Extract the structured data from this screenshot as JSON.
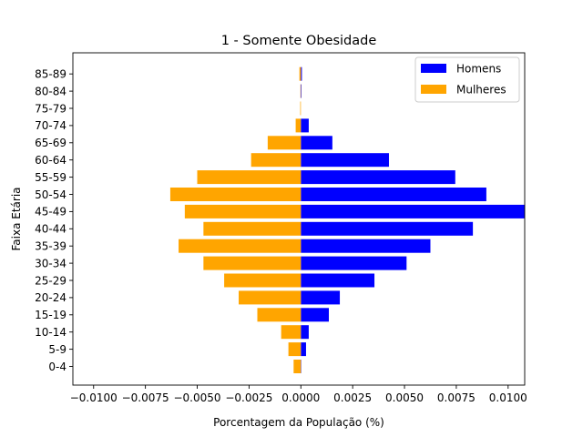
{
  "chart_data": {
    "type": "bar",
    "orientation": "horizontal",
    "title": "1 - Somente Obesidade",
    "xlabel": "Porcentagem da População (%)",
    "ylabel": "Faixa Etária",
    "xlim": [
      -0.011,
      0.0108
    ],
    "xticks": [
      -0.01,
      -0.0075,
      -0.005,
      -0.0025,
      0.0,
      0.0025,
      0.005,
      0.0075,
      0.01
    ],
    "xtick_labels": [
      "−0.0100",
      "−0.0075",
      "−0.0050",
      "−0.0025",
      "0.0000",
      "0.0025",
      "0.0050",
      "0.0075",
      "0.0100"
    ],
    "categories": [
      "0-4",
      "5-9",
      "10-14",
      "15-19",
      "20-24",
      "25-29",
      "30-34",
      "35-39",
      "40-44",
      "45-49",
      "50-54",
      "55-59",
      "60-64",
      "65-69",
      "70-74",
      "75-79",
      "80-84",
      "85-89"
    ],
    "series": [
      {
        "name": "Homens",
        "color": "#0000ff",
        "values": [
          2e-05,
          0.00025,
          0.00038,
          0.00135,
          0.00188,
          0.00355,
          0.0051,
          0.00625,
          0.0083,
          0.0108,
          0.00895,
          0.00745,
          0.00425,
          0.00152,
          0.00038,
          0.0,
          3e-05,
          5e-05
        ]
      },
      {
        "name": "Mulheres",
        "color": "#ffa500",
        "values": [
          -0.00035,
          -0.0006,
          -0.00095,
          -0.0021,
          -0.003,
          -0.0037,
          -0.0047,
          -0.0059,
          -0.0047,
          -0.0056,
          -0.0063,
          -0.005,
          -0.0024,
          -0.0016,
          -0.00025,
          -3e-05,
          -2e-05,
          -7e-05
        ]
      }
    ],
    "legend": {
      "position": "top-right"
    },
    "grid": false
  }
}
